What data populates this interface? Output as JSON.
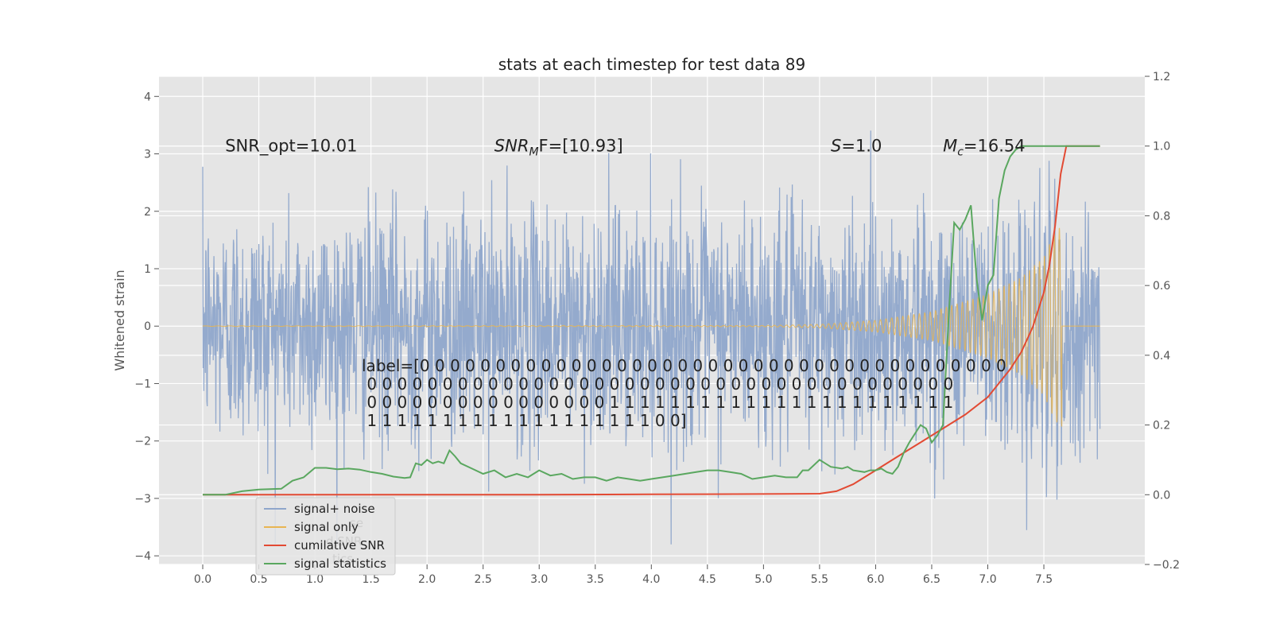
{
  "chart_data": {
    "type": "line",
    "title": "stats at each timestep for test data 89",
    "ylabel": "Whitened strain",
    "xlabel": "",
    "xlim": [
      -0.39,
      8.4
    ],
    "ylim": [
      -4.15,
      4.35
    ],
    "y2lim": [
      -0.2,
      1.2
    ],
    "x_ticks": [
      0.0,
      0.5,
      1.0,
      1.5,
      2.0,
      2.5,
      3.0,
      3.5,
      4.0,
      4.5,
      5.0,
      5.5,
      6.0,
      6.5,
      7.0,
      7.5
    ],
    "x_tick_labels": [
      "0.0",
      "0.5",
      "1.0",
      "1.5",
      "2.0",
      "2.5",
      "3.0",
      "3.5",
      "4.0",
      "4.5",
      "5.0",
      "5.5",
      "6.0",
      "6.5",
      "7.0",
      "7.5"
    ],
    "y_ticks": [
      -4,
      -3,
      -2,
      -1,
      0,
      1,
      2,
      3,
      4
    ],
    "y_tick_labels": [
      "−4",
      "−3",
      "−2",
      "−1",
      "0",
      "1",
      "2",
      "3",
      "4"
    ],
    "y2_ticks": [
      -0.2,
      0.0,
      0.2,
      0.4,
      0.6,
      0.8,
      1.0,
      1.2
    ],
    "y2_tick_labels": [
      "−0.2",
      "0.0",
      "0.2",
      "0.4",
      "0.6",
      "0.8",
      "1.0",
      "1.2"
    ],
    "grid": true,
    "legend_position": "lower-left",
    "series": [
      {
        "name": "signal+ noise",
        "color": "#8fa6cb",
        "axis": "left",
        "kind": "noise",
        "x_range": [
          0.0,
          8.0
        ],
        "noise_sigma": 1.0
      },
      {
        "name": "signal only",
        "color": "#e8b552",
        "axis": "left",
        "kind": "chirp",
        "x_range": [
          0.0,
          7.66
        ],
        "envelope": [
          [
            0.0,
            0.005
          ],
          [
            5.0,
            0.01
          ],
          [
            5.5,
            0.03
          ],
          [
            6.0,
            0.1
          ],
          [
            6.5,
            0.25
          ],
          [
            7.0,
            0.55
          ],
          [
            7.3,
            0.85
          ],
          [
            7.5,
            1.2
          ],
          [
            7.6,
            1.65
          ],
          [
            7.66,
            1.75
          ]
        ]
      },
      {
        "name": "cumilative SNR",
        "color": "#e24a33",
        "axis": "right",
        "x": [
          0.0,
          0.5,
          1.0,
          2.0,
          3.0,
          4.0,
          5.0,
          5.5,
          5.65,
          5.8,
          5.9,
          6.0,
          6.2,
          6.4,
          6.6,
          6.8,
          7.0,
          7.2,
          7.3,
          7.4,
          7.5,
          7.55,
          7.6,
          7.65,
          7.7,
          8.0
        ],
        "y": [
          0.0,
          0.0,
          0.0,
          0.0,
          0.0,
          0.001,
          0.002,
          0.003,
          0.01,
          0.03,
          0.05,
          0.07,
          0.11,
          0.15,
          0.19,
          0.23,
          0.28,
          0.36,
          0.41,
          0.48,
          0.58,
          0.66,
          0.77,
          0.92,
          1.0,
          1.0
        ]
      },
      {
        "name": "signal statistics",
        "color": "#5aa75f",
        "axis": "right",
        "x": [
          0.0,
          0.2,
          0.35,
          0.5,
          0.7,
          0.8,
          0.9,
          1.0,
          1.1,
          1.2,
          1.3,
          1.4,
          1.5,
          1.6,
          1.7,
          1.8,
          1.85,
          1.9,
          1.95,
          2.0,
          2.05,
          2.1,
          2.15,
          2.2,
          2.25,
          2.3,
          2.4,
          2.5,
          2.6,
          2.7,
          2.8,
          2.9,
          3.0,
          3.1,
          3.2,
          3.3,
          3.4,
          3.5,
          3.6,
          3.7,
          3.8,
          3.9,
          4.0,
          4.1,
          4.2,
          4.3,
          4.4,
          4.5,
          4.6,
          4.7,
          4.8,
          4.9,
          5.0,
          5.1,
          5.2,
          5.3,
          5.35,
          5.4,
          5.5,
          5.55,
          5.6,
          5.7,
          5.75,
          5.8,
          5.9,
          5.95,
          6.0,
          6.05,
          6.1,
          6.15,
          6.2,
          6.25,
          6.3,
          6.4,
          6.45,
          6.5,
          6.55,
          6.6,
          6.65,
          6.7,
          6.75,
          6.8,
          6.85,
          6.9,
          6.95,
          7.0,
          7.05,
          7.1,
          7.15,
          7.2,
          7.25,
          7.3,
          7.35,
          7.4,
          7.45,
          7.5,
          7.6,
          7.7,
          8.0
        ],
        "y": [
          0.0,
          0.0,
          0.01,
          0.015,
          0.017,
          0.04,
          0.05,
          0.077,
          0.077,
          0.073,
          0.075,
          0.072,
          0.065,
          0.06,
          0.052,
          0.048,
          0.05,
          0.09,
          0.085,
          0.1,
          0.09,
          0.095,
          0.09,
          0.127,
          0.11,
          0.09,
          0.075,
          0.06,
          0.07,
          0.05,
          0.06,
          0.05,
          0.07,
          0.055,
          0.06,
          0.045,
          0.05,
          0.05,
          0.04,
          0.05,
          0.045,
          0.04,
          0.045,
          0.05,
          0.055,
          0.06,
          0.065,
          0.07,
          0.07,
          0.065,
          0.06,
          0.045,
          0.05,
          0.055,
          0.05,
          0.05,
          0.07,
          0.07,
          0.1,
          0.09,
          0.08,
          0.075,
          0.08,
          0.07,
          0.065,
          0.07,
          0.07,
          0.075,
          0.065,
          0.06,
          0.08,
          0.12,
          0.15,
          0.2,
          0.19,
          0.15,
          0.17,
          0.2,
          0.5,
          0.78,
          0.76,
          0.79,
          0.83,
          0.62,
          0.5,
          0.6,
          0.63,
          0.85,
          0.93,
          0.97,
          0.99,
          1.0,
          1.0,
          1.0,
          1.0,
          1.0,
          1.0,
          1.0,
          1.0
        ]
      }
    ],
    "annotations": [
      {
        "text": "SNR_opt=10.01",
        "x": 0.2,
        "y": 3.15
      },
      {
        "text_prefix": "SNR",
        "sub": "M",
        "text_suffix": "F=[10.93]",
        "x": 2.6,
        "y": 3.15
      },
      {
        "text_prefix": "S",
        "sub": "",
        "text_suffix": "=1.0",
        "x": 5.6,
        "y": 3.15
      },
      {
        "text_prefix": "M",
        "sub": "c",
        "text_suffix": "=16.54",
        "x": 6.6,
        "y": 3.15
      }
    ],
    "label_lines": [
      "label=[0 0 0 0 0 0 0 0 0 0 0 0 0 0 0 0 0 0 0 0 0 0 0 0 0 0 0 0 0 0 0 0 0 0 0 0 0 0 0",
      " 0 0 0 0 0 0 0 0 0 0 0 0 0 0 0 0 0 0 0 0 0 0 0 0 0 0 0 0 0 0 0 0 0 0 0 0 0 0 0",
      " 0 0 0 0 0 0 0 0 0 0 0 0 0 0 0 0 1 1 1 1 1 1 1 1 1 1 1 1 1 1 1 1 1 1 1 1 1 1 1",
      " 1 1 1 1 1 1 1 1 1 1 1 1 1 1 1 1 1 1 1 0 0]"
    ],
    "legend_ghost": [
      "se",
      "d SNR",
      "tics"
    ]
  }
}
